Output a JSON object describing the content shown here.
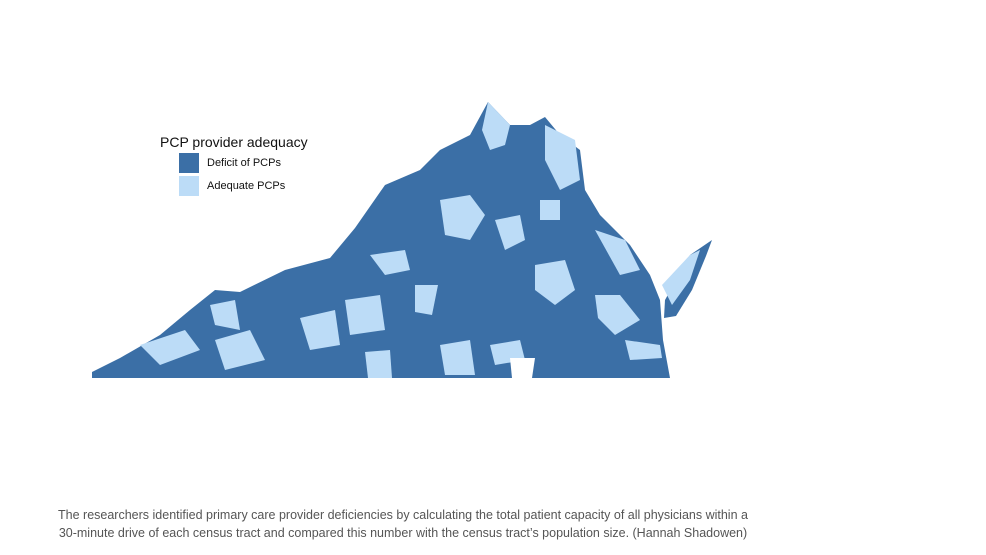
{
  "legend": {
    "title": "PCP provider adequacy",
    "items": [
      {
        "label": "Deficit of PCPs",
        "color": "#3b6fa6"
      },
      {
        "label": "Adequate PCPs",
        "color": "#bcdcf7"
      }
    ]
  },
  "caption": {
    "lines": [
      "The researchers identified primary care provider deficiencies by calculating the total patient capacity of all physicians within a",
      "30-minute drive of each census tract and compared this number with the census tract’s population size. (Hannah Shadowen)"
    ]
  }
}
